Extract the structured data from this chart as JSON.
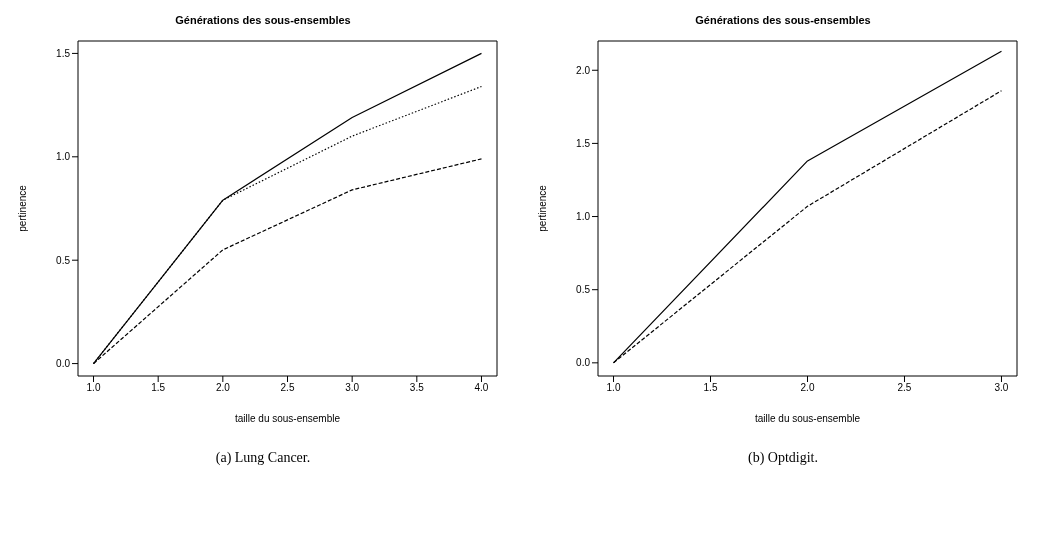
{
  "chart_data": [
    {
      "type": "line",
      "title": "Générations des sous-ensembles",
      "xlabel": "taille du sous-ensemble",
      "ylabel": "pertinence",
      "x": [
        1,
        2,
        3,
        4
      ],
      "xlim": [
        0.88,
        4.12
      ],
      "xticks": [
        {
          "value": 1,
          "label": "1.0"
        },
        {
          "value": 1.5,
          "label": "1.5"
        },
        {
          "value": 2,
          "label": "2.0"
        },
        {
          "value": 2.5,
          "label": "2.5"
        },
        {
          "value": 3,
          "label": "3.0"
        },
        {
          "value": 3.5,
          "label": "3.5"
        },
        {
          "value": 4,
          "label": "4.0"
        }
      ],
      "ylim": [
        -0.06,
        1.56
      ],
      "yticks": [
        {
          "value": 0,
          "label": "0.0"
        },
        {
          "value": 0.5,
          "label": "0.5"
        },
        {
          "value": 1,
          "label": "1.0"
        },
        {
          "value": 1.5,
          "label": "1.5"
        }
      ],
      "grid": false,
      "legend": false,
      "marker": "none",
      "annotations": [
        "(a) Lung Cancer."
      ],
      "series": [
        {
          "color": "#000000",
          "line_style": "solid",
          "values": [
            0,
            0.79,
            1.19,
            1.5
          ]
        },
        {
          "color": "#000000",
          "line_style": "dotted",
          "values": [
            0,
            0.79,
            1.1,
            1.34
          ]
        },
        {
          "color": "#000000",
          "line_style": "dashed",
          "values": [
            0,
            0.55,
            0.84,
            0.99
          ]
        }
      ]
    },
    {
      "type": "line",
      "title": "Générations des sous-ensembles",
      "xlabel": "taille du sous-ensemble",
      "ylabel": "pertinence",
      "x": [
        1,
        2,
        3
      ],
      "xlim": [
        0.92,
        3.08
      ],
      "xticks": [
        {
          "value": 1,
          "label": "1.0"
        },
        {
          "value": 1.5,
          "label": "1.5"
        },
        {
          "value": 2,
          "label": "2.0"
        },
        {
          "value": 2.5,
          "label": "2.5"
        },
        {
          "value": 3,
          "label": "3.0"
        }
      ],
      "ylim": [
        -0.09,
        2.2
      ],
      "yticks": [
        {
          "value": 0,
          "label": "0.0"
        },
        {
          "value": 0.5,
          "label": "0.5"
        },
        {
          "value": 1,
          "label": "1.0"
        },
        {
          "value": 1.5,
          "label": "1.5"
        },
        {
          "value": 2,
          "label": "2.0"
        }
      ],
      "grid": false,
      "legend": false,
      "marker": "none",
      "annotations": [
        "(b) Optdigit."
      ],
      "series": [
        {
          "color": "#000000",
          "line_style": "solid",
          "values": [
            0,
            1.38,
            2.13
          ]
        },
        {
          "color": "#000000",
          "line_style": "dashed",
          "values": [
            0,
            1.07,
            1.86
          ]
        }
      ]
    }
  ]
}
